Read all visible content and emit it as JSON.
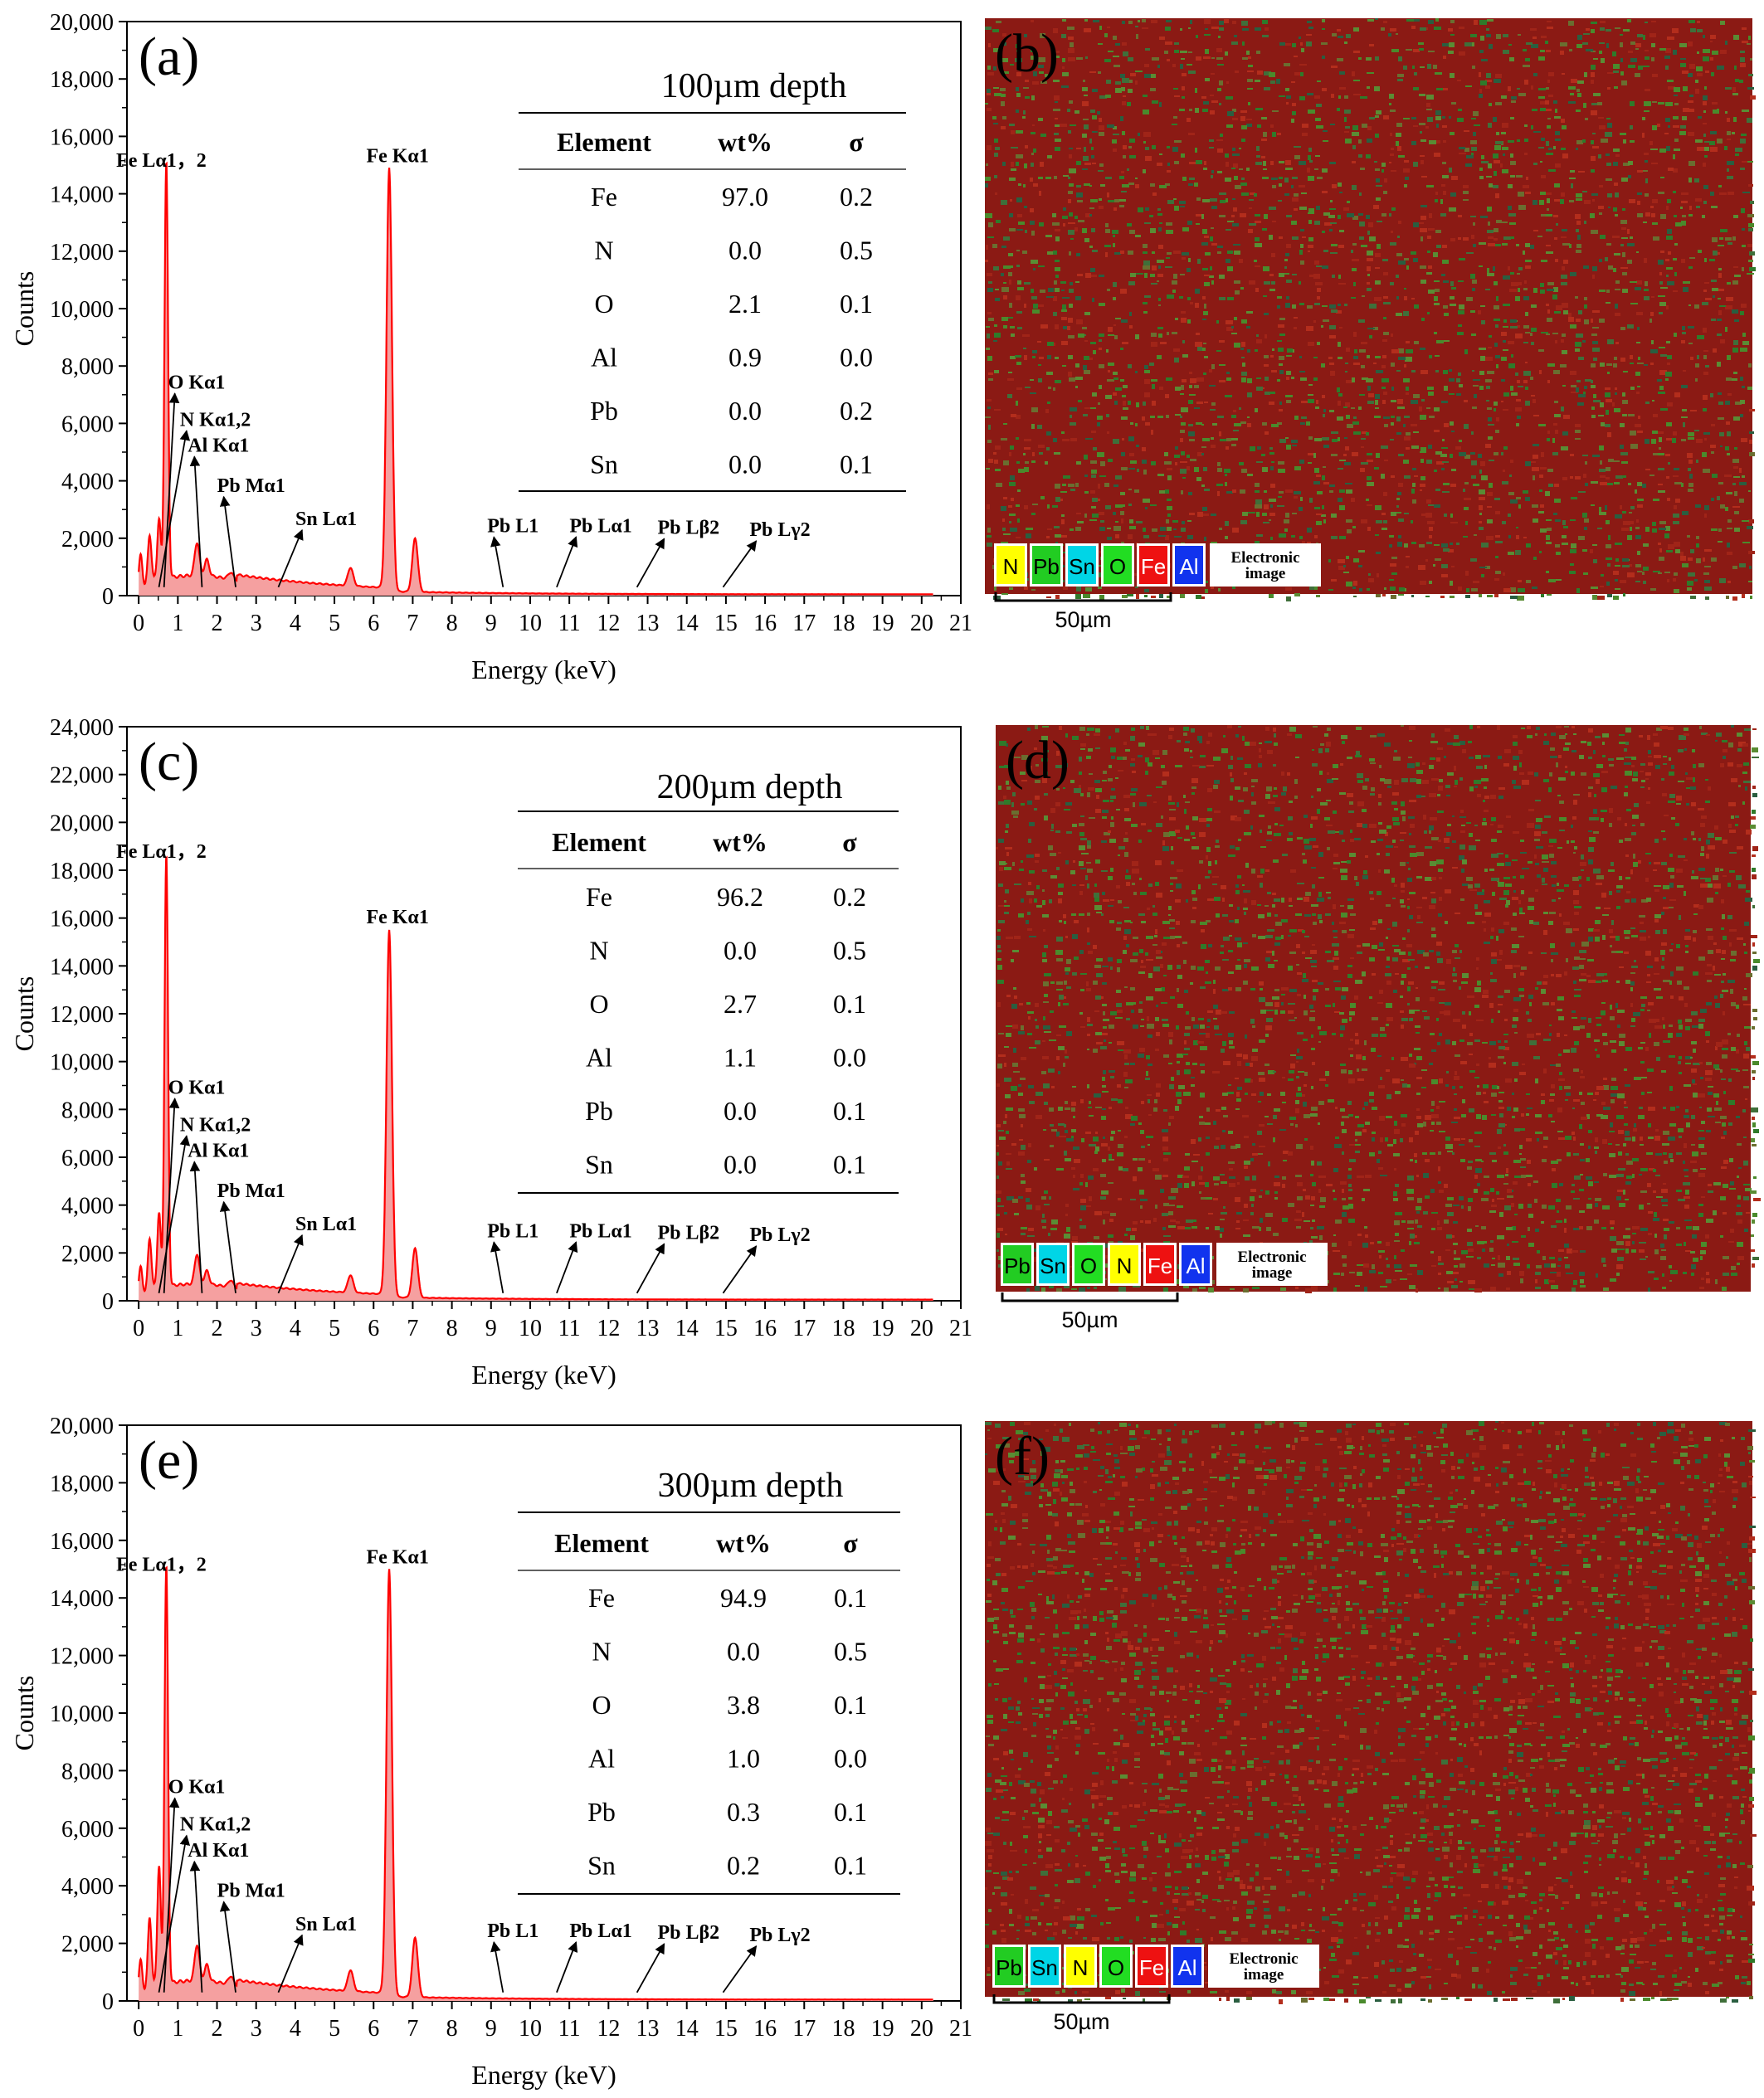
{
  "figure": {
    "panels_spectrum": [
      {
        "label": "(a)",
        "depth": "100µm depth"
      },
      {
        "label": "(c)",
        "depth": "200µm depth"
      },
      {
        "label": "(e)",
        "depth": "300µm depth"
      }
    ],
    "panels_map": [
      {
        "label": "(b)",
        "legend": [
          "N",
          "Pb",
          "Sn",
          "O",
          "Fe",
          "Al"
        ],
        "electronic": [
          "Electronic",
          "image"
        ],
        "scale": "50µm"
      },
      {
        "label": "(d)",
        "legend": [
          "Pb",
          "Sn",
          "O",
          "N",
          "Fe",
          "Al"
        ],
        "electronic": [
          "Electronic",
          "image"
        ],
        "scale": "50µm"
      },
      {
        "label": "(f)",
        "legend": [
          "Pb",
          "Sn",
          "N",
          "O",
          "Fe",
          "Al"
        ],
        "electronic": [
          "Electronic",
          "image"
        ],
        "scale": "50µm"
      }
    ],
    "element_colors": {
      "N": "#ffff00",
      "Pb": "#22cc22",
      "Sn": "#00d5e6",
      "O": "#22dd22",
      "Fe": "#ee1111",
      "Al": "#1133ee"
    },
    "table_headers": [
      "Element",
      "wt%",
      "σ"
    ],
    "spectrum_color": "#ff0000",
    "spectrum_fill": "#f5a0a0",
    "map_base_color": "#8b1a14"
  },
  "chart_data": [
    {
      "type": "area",
      "title": "100µm depth",
      "xlabel": "Energy (keV)",
      "ylabel": "Counts",
      "xlim": [
        -0.3,
        21
      ],
      "ylim": [
        0,
        20000
      ],
      "xticks": [
        "0",
        "1",
        "2",
        "3",
        "4",
        "5",
        "6",
        "7",
        "8",
        "9",
        "10",
        "11",
        "12",
        "13",
        "14",
        "15",
        "16",
        "17",
        "18",
        "19",
        "20",
        "21"
      ],
      "yticks": [
        "0",
        "2,000",
        "4,000",
        "6,000",
        "8,000",
        "10,000",
        "12,000",
        "14,000",
        "16,000",
        "18,000",
        "20,000"
      ],
      "peaks": [
        {
          "energy": 0.05,
          "counts": 1200
        },
        {
          "energy": 0.28,
          "counts": 1800
        },
        {
          "energy": 0.52,
          "counts": 2200
        },
        {
          "energy": 0.705,
          "counts": 14600
        },
        {
          "energy": 1.49,
          "counts": 1300
        },
        {
          "energy": 1.74,
          "counts": 700
        },
        {
          "energy": 2.35,
          "counts": 350
        },
        {
          "energy": 5.41,
          "counts": 700
        },
        {
          "energy": 6.4,
          "counts": 14700
        },
        {
          "energy": 7.06,
          "counts": 1900
        }
      ],
      "annotations": [
        {
          "text": "Fe Lα1，2",
          "energy": 0.705
        },
        {
          "text": "Fe Kα1",
          "energy": 6.4
        },
        {
          "text": "O Kα1",
          "energy": 0.52
        },
        {
          "text": "N Kα1,2",
          "energy": 0.39
        },
        {
          "text": "Al Kα1",
          "energy": 1.49
        },
        {
          "text": "Pb Mα1",
          "energy": 2.35
        },
        {
          "text": "Sn Lα1",
          "energy": 3.44
        },
        {
          "text": "Pb L1",
          "energy": 9.18
        },
        {
          "text": "Pb Lα1",
          "energy": 10.55
        },
        {
          "text": "Pb Lβ2",
          "energy": 12.6
        },
        {
          "text": "Pb Lγ2",
          "energy": 14.8
        }
      ],
      "table": [
        {
          "element": "Fe",
          "wt": "97.0",
          "sigma": "0.2"
        },
        {
          "element": "N",
          "wt": "0.0",
          "sigma": "0.5"
        },
        {
          "element": "O",
          "wt": "2.1",
          "sigma": "0.1"
        },
        {
          "element": "Al",
          "wt": "0.9",
          "sigma": "0.0"
        },
        {
          "element": "Pb",
          "wt": "0.0",
          "sigma": "0.2"
        },
        {
          "element": "Sn",
          "wt": "0.0",
          "sigma": "0.1"
        }
      ]
    },
    {
      "type": "area",
      "title": "200µm depth",
      "xlabel": "Energy (keV)",
      "ylabel": "Counts",
      "xlim": [
        -0.3,
        21
      ],
      "ylim": [
        0,
        24000
      ],
      "xticks": [
        "0",
        "1",
        "2",
        "3",
        "4",
        "5",
        "6",
        "7",
        "8",
        "9",
        "10",
        "11",
        "12",
        "13",
        "14",
        "15",
        "16",
        "17",
        "18",
        "19",
        "20",
        "21"
      ],
      "yticks": [
        "0",
        "2,000",
        "4,000",
        "6,000",
        "8,000",
        "10,000",
        "12,000",
        "14,000",
        "16,000",
        "18,000",
        "20,000",
        "22,000",
        "24,000"
      ],
      "peaks": [
        {
          "energy": 0.05,
          "counts": 1200
        },
        {
          "energy": 0.28,
          "counts": 2300
        },
        {
          "energy": 0.52,
          "counts": 3200
        },
        {
          "energy": 0.705,
          "counts": 18100
        },
        {
          "energy": 1.49,
          "counts": 1400
        },
        {
          "energy": 1.74,
          "counts": 700
        },
        {
          "energy": 2.35,
          "counts": 400
        },
        {
          "energy": 5.41,
          "counts": 800
        },
        {
          "energy": 6.4,
          "counts": 15300
        },
        {
          "energy": 7.06,
          "counts": 2100
        }
      ],
      "annotations": [
        {
          "text": "Fe Lα1，2",
          "energy": 0.705
        },
        {
          "text": "Fe Kα1",
          "energy": 6.4
        },
        {
          "text": "O Kα1",
          "energy": 0.52
        },
        {
          "text": "N Kα1,2",
          "energy": 0.39
        },
        {
          "text": "Al Kα1",
          "energy": 1.49
        },
        {
          "text": "Pb Mα1",
          "energy": 2.35
        },
        {
          "text": "Sn Lα1",
          "energy": 3.44
        },
        {
          "text": "Pb L1",
          "energy": 9.18
        },
        {
          "text": "Pb Lα1",
          "energy": 10.55
        },
        {
          "text": "Pb Lβ2",
          "energy": 12.6
        },
        {
          "text": "Pb Lγ2",
          "energy": 14.8
        }
      ],
      "table": [
        {
          "element": "Fe",
          "wt": "96.2",
          "sigma": "0.2"
        },
        {
          "element": "N",
          "wt": "0.0",
          "sigma": "0.5"
        },
        {
          "element": "O",
          "wt": "2.7",
          "sigma": "0.1"
        },
        {
          "element": "Al",
          "wt": "1.1",
          "sigma": "0.0"
        },
        {
          "element": "Pb",
          "wt": "0.0",
          "sigma": "0.1"
        },
        {
          "element": "Sn",
          "wt": "0.0",
          "sigma": "0.1"
        }
      ]
    },
    {
      "type": "area",
      "title": "300µm depth",
      "xlabel": "Energy (keV)",
      "ylabel": "Counts",
      "xlim": [
        -0.3,
        21
      ],
      "ylim": [
        0,
        20000
      ],
      "xticks": [
        "0",
        "1",
        "2",
        "3",
        "4",
        "5",
        "6",
        "7",
        "8",
        "9",
        "10",
        "11",
        "12",
        "13",
        "14",
        "15",
        "16",
        "17",
        "18",
        "19",
        "20",
        "21"
      ],
      "yticks": [
        "0",
        "2,000",
        "4,000",
        "6,000",
        "8,000",
        "10,000",
        "12,000",
        "14,000",
        "16,000",
        "18,000",
        "20,000"
      ],
      "peaks": [
        {
          "energy": 0.05,
          "counts": 1200
        },
        {
          "energy": 0.28,
          "counts": 2600
        },
        {
          "energy": 0.52,
          "counts": 4200
        },
        {
          "energy": 0.705,
          "counts": 14600
        },
        {
          "energy": 1.49,
          "counts": 1400
        },
        {
          "energy": 1.74,
          "counts": 700
        },
        {
          "energy": 2.35,
          "counts": 400
        },
        {
          "energy": 5.41,
          "counts": 800
        },
        {
          "energy": 6.4,
          "counts": 14800
        },
        {
          "energy": 7.06,
          "counts": 2100
        }
      ],
      "annotations": [
        {
          "text": "Fe Lα1，2",
          "energy": 0.705
        },
        {
          "text": "Fe Kα1",
          "energy": 6.4
        },
        {
          "text": "O Kα1",
          "energy": 0.52
        },
        {
          "text": "N Kα1,2",
          "energy": 0.39
        },
        {
          "text": "Al Kα1",
          "energy": 1.49
        },
        {
          "text": "Pb Mα1",
          "energy": 2.35
        },
        {
          "text": "Sn Lα1",
          "energy": 3.44
        },
        {
          "text": "Pb L1",
          "energy": 9.18
        },
        {
          "text": "Pb Lα1",
          "energy": 10.55
        },
        {
          "text": "Pb Lβ2",
          "energy": 12.6
        },
        {
          "text": "Pb Lγ2",
          "energy": 14.8
        }
      ],
      "table": [
        {
          "element": "Fe",
          "wt": "94.9",
          "sigma": "0.1"
        },
        {
          "element": "N",
          "wt": "0.0",
          "sigma": "0.5"
        },
        {
          "element": "O",
          "wt": "3.8",
          "sigma": "0.1"
        },
        {
          "element": "Al",
          "wt": "1.0",
          "sigma": "0.0"
        },
        {
          "element": "Pb",
          "wt": "0.3",
          "sigma": "0.1"
        },
        {
          "element": "Sn",
          "wt": "0.2",
          "sigma": "0.1"
        }
      ]
    }
  ]
}
